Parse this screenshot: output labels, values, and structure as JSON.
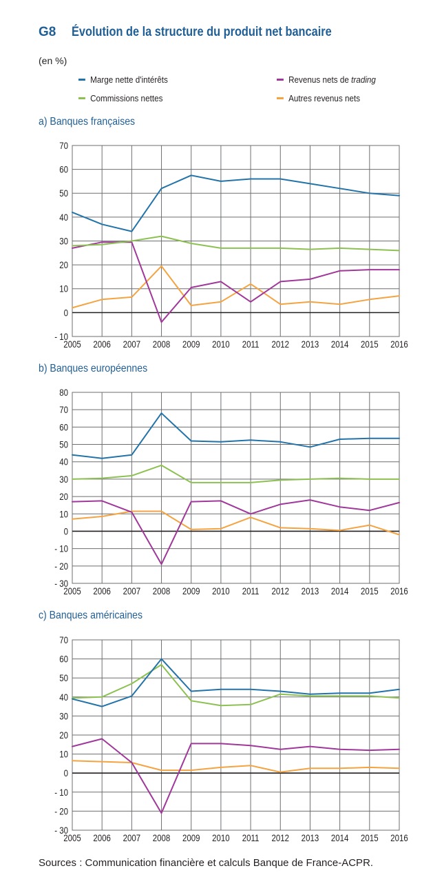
{
  "figure": {
    "label": "G8",
    "title": "Évolution de la structure du produit net bancaire",
    "unit": "(en %)",
    "source": "Sources : Communication financière et calculs Banque de France-ACPR."
  },
  "legend": [
    {
      "name": "Marge nette d'intérêts",
      "color": "#2273a9"
    },
    {
      "name": "Revenus nets de ",
      "name_em": "trading",
      "color": "#a0379a"
    },
    {
      "name": "Commissions nettes",
      "color": "#8cc152"
    },
    {
      "name": "Autres revenus nets",
      "color": "#f5a340"
    }
  ],
  "chart_data": [
    {
      "type": "line",
      "title": "a) Banques françaises",
      "x": [
        "2005",
        "2006",
        "2007",
        "2008",
        "2009",
        "2010",
        "2011",
        "2012",
        "2013",
        "2014",
        "2015",
        "2016"
      ],
      "ylim": [
        -10,
        70
      ],
      "yticks": [
        "70",
        "60",
        "50",
        "40",
        "30",
        "20",
        "10",
        "0",
        "- 10"
      ],
      "grid": true,
      "series": [
        {
          "name": "Marge nette d'intérêts",
          "color": "#2273a9",
          "values": [
            42,
            37,
            34,
            52,
            57.5,
            55,
            56,
            56,
            54,
            52,
            50,
            49
          ]
        },
        {
          "name": "Commissions nettes",
          "color": "#8cc152",
          "values": [
            28,
            28.5,
            30,
            32,
            29,
            27,
            27,
            27,
            26.5,
            27,
            26.5,
            26
          ]
        },
        {
          "name": "Revenus nets de trading",
          "color": "#a0379a",
          "values": [
            27,
            29.5,
            29.5,
            -4,
            10.5,
            13,
            4.5,
            13,
            14,
            17.5,
            18,
            18
          ]
        },
        {
          "name": "Autres revenus nets",
          "color": "#f5a340",
          "values": [
            2,
            5.5,
            6.5,
            19.5,
            3,
            4.5,
            12,
            3.5,
            4.5,
            3.5,
            5.5,
            7
          ]
        }
      ]
    },
    {
      "type": "line",
      "title": "b) Banques européennes",
      "x": [
        "2005",
        "2006",
        "2007",
        "2008",
        "2009",
        "2010",
        "2011",
        "2012",
        "2013",
        "2014",
        "2015",
        "2016"
      ],
      "ylim": [
        -30,
        80
      ],
      "yticks": [
        "80",
        "70",
        "60",
        "50",
        "40",
        "30",
        "20",
        "10",
        "0",
        "- 10",
        "- 20",
        "- 30"
      ],
      "grid": true,
      "series": [
        {
          "name": "Marge nette d'intérêts",
          "color": "#2273a9",
          "values": [
            44,
            42,
            44,
            68,
            52,
            51.5,
            52.5,
            51.5,
            48.5,
            53,
            53.5,
            53.5
          ]
        },
        {
          "name": "Commissions nettes",
          "color": "#8cc152",
          "values": [
            30,
            30.5,
            32,
            38,
            28,
            28,
            28,
            29.5,
            30,
            30.5,
            30,
            30
          ]
        },
        {
          "name": "Revenus nets de trading",
          "color": "#a0379a",
          "values": [
            17,
            17.5,
            11,
            -19,
            17,
            17.5,
            10,
            15.5,
            18,
            14,
            12,
            16.5
          ]
        },
        {
          "name": "Autres revenus nets",
          "color": "#f5a340",
          "values": [
            7,
            8.5,
            11.5,
            11.5,
            1,
            1.5,
            8,
            2,
            1.5,
            0.5,
            3.5,
            -2
          ]
        }
      ]
    },
    {
      "type": "line",
      "title": "c) Banques américaines",
      "x": [
        "2005",
        "2006",
        "2007",
        "2008",
        "2009",
        "2010",
        "2011",
        "2012",
        "2013",
        "2014",
        "2015",
        "2016"
      ],
      "ylim": [
        -30,
        70
      ],
      "yticks": [
        "70",
        "60",
        "50",
        "40",
        "30",
        "20",
        "10",
        "0",
        "- 10",
        "- 20",
        "- 30"
      ],
      "grid": true,
      "series": [
        {
          "name": "Marge nette d'intérêts",
          "color": "#2273a9",
          "values": [
            39,
            35,
            40.5,
            60,
            43,
            44,
            44,
            43,
            41.5,
            42,
            42,
            44
          ]
        },
        {
          "name": "Commissions nettes",
          "color": "#8cc152",
          "values": [
            39.5,
            40,
            47,
            57,
            38,
            35.5,
            36,
            41.5,
            40.5,
            40.5,
            40.5,
            39.5
          ]
        },
        {
          "name": "Revenus nets de trading",
          "color": "#a0379a",
          "values": [
            14,
            18,
            5.5,
            -21,
            15.5,
            15.5,
            14.5,
            12.5,
            14,
            12.5,
            12,
            12.5
          ]
        },
        {
          "name": "Autres revenus nets",
          "color": "#f5a340",
          "values": [
            6.5,
            6,
            5.5,
            1.5,
            1.5,
            3,
            4,
            0.5,
            2.5,
            2.5,
            3,
            2.5
          ]
        }
      ]
    }
  ]
}
